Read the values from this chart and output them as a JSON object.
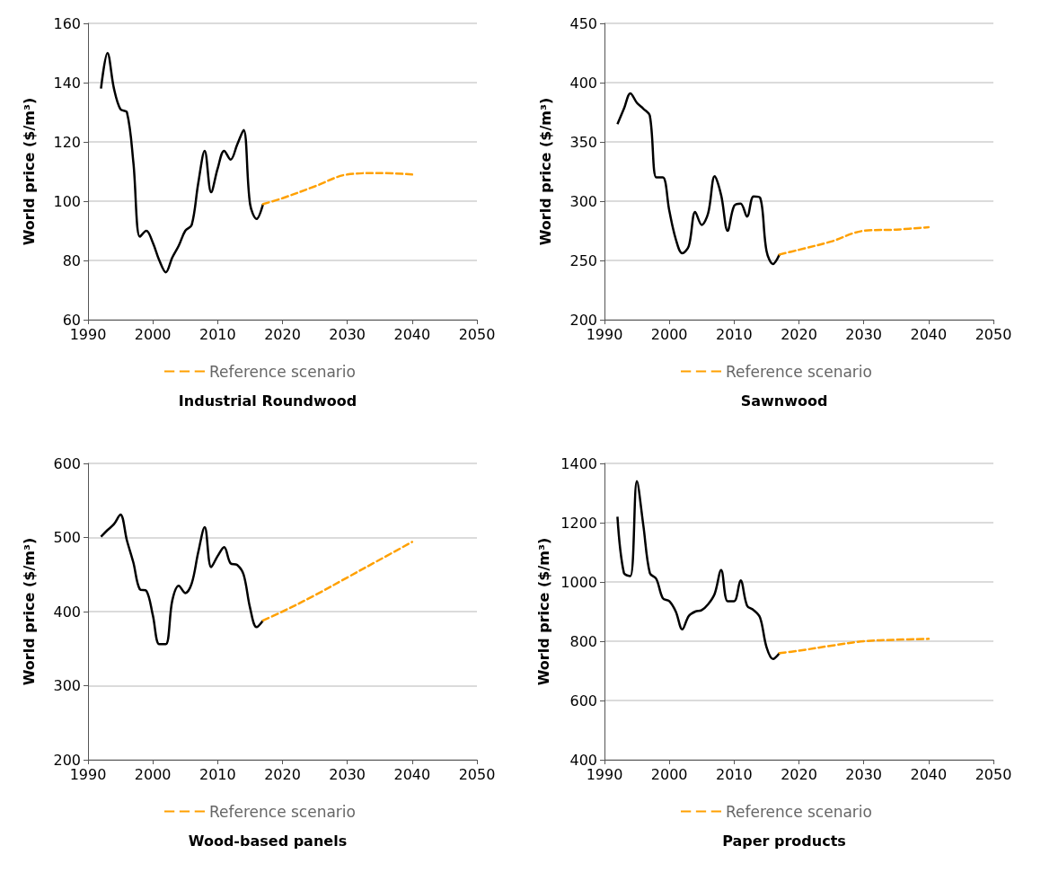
{
  "chart_data": [
    {
      "type": "line",
      "title": "Industrial Roundwood",
      "ylabel": "World price ($/m³)",
      "xlim": [
        1990,
        2050
      ],
      "xticks": [
        1990,
        2000,
        2010,
        2020,
        2030,
        2040,
        2050
      ],
      "ylim": [
        60,
        160
      ],
      "yticks": [
        60,
        80,
        100,
        120,
        140,
        160
      ],
      "grid": "y",
      "legend": "bottom",
      "marker": "none",
      "series": [
        {
          "color": "#000000",
          "line_style": "solid",
          "x": [
            1992,
            1993,
            1994,
            1995,
            1996,
            1997,
            1998,
            1999,
            2000,
            2001,
            2002,
            2003,
            2004,
            2005,
            2006,
            2007,
            2008,
            2009,
            2010,
            2011,
            2012,
            2013,
            2014,
            2015,
            2016,
            2017
          ],
          "values": [
            138,
            150,
            138,
            131,
            130,
            113,
            88,
            90,
            86,
            80,
            76,
            81,
            85,
            90,
            92,
            106,
            117,
            103,
            111,
            117,
            114,
            119,
            124,
            99,
            94,
            99
          ]
        },
        {
          "name": "Reference scenario",
          "color": "#ffa000",
          "line_style": "dashed",
          "x": [
            2017,
            2020,
            2025,
            2030,
            2035,
            2040
          ],
          "values": [
            99,
            101,
            105,
            109,
            109.5,
            109
          ]
        }
      ]
    },
    {
      "type": "line",
      "title": "Sawnwood",
      "ylabel": "World price ($/m³)",
      "xlim": [
        1990,
        2050
      ],
      "xticks": [
        1990,
        2000,
        2010,
        2020,
        2030,
        2040,
        2050
      ],
      "ylim": [
        200,
        450
      ],
      "yticks": [
        200,
        250,
        300,
        350,
        400,
        450
      ],
      "grid": "y",
      "legend": "bottom",
      "marker": "none",
      "series": [
        {
          "color": "#000000",
          "line_style": "solid",
          "x": [
            1992,
            1993,
            1994,
            1995,
            1996,
            1997,
            1998,
            1999,
            2000,
            2001,
            2002,
            2003,
            2004,
            2005,
            2006,
            2007,
            2008,
            2009,
            2010,
            2011,
            2012,
            2013,
            2014,
            2015,
            2016,
            2017
          ],
          "values": [
            365,
            378,
            391,
            383,
            378,
            372,
            320,
            320,
            292,
            268,
            256,
            262,
            291,
            280,
            290,
            321,
            305,
            275,
            296,
            298,
            287,
            304,
            303,
            258,
            247,
            255
          ]
        },
        {
          "name": "Reference scenario",
          "color": "#ffa000",
          "line_style": "dashed",
          "x": [
            2017,
            2020,
            2025,
            2030,
            2035,
            2040
          ],
          "values": [
            255,
            259,
            266,
            275,
            276,
            278
          ]
        }
      ]
    },
    {
      "type": "line",
      "title": "Wood-based panels",
      "ylabel": "World price ($/m³)",
      "xlim": [
        1990,
        2050
      ],
      "xticks": [
        1990,
        2000,
        2010,
        2020,
        2030,
        2040,
        2050
      ],
      "ylim": [
        200,
        600
      ],
      "yticks": [
        200,
        300,
        400,
        500,
        600
      ],
      "grid": "y",
      "legend": "bottom",
      "marker": "none",
      "series": [
        {
          "color": "#000000",
          "line_style": "solid",
          "x": [
            1992,
            1993,
            1994,
            1995,
            1996,
            1997,
            1998,
            1999,
            2000,
            2001,
            2002,
            2003,
            2004,
            2005,
            2006,
            2007,
            2008,
            2009,
            2010,
            2011,
            2012,
            2013,
            2014,
            2015,
            2016,
            2017
          ],
          "values": [
            501,
            510,
            518,
            531,
            496,
            466,
            430,
            428,
            395,
            356,
            356,
            415,
            435,
            425,
            438,
            480,
            514,
            460,
            475,
            487,
            465,
            463,
            450,
            405,
            379,
            388
          ]
        },
        {
          "name": "Reference scenario",
          "color": "#ffa000",
          "line_style": "dashed",
          "x": [
            2017,
            2020,
            2025,
            2030,
            2035,
            2040
          ],
          "values": [
            388,
            400,
            422,
            446,
            470,
            494
          ]
        }
      ]
    },
    {
      "type": "line",
      "title": "Paper products",
      "ylabel": "World price ($/m³)",
      "xlim": [
        1990,
        2050
      ],
      "xticks": [
        1990,
        2000,
        2010,
        2020,
        2030,
        2040,
        2050
      ],
      "ylim": [
        400,
        1400
      ],
      "yticks": [
        400,
        600,
        800,
        1000,
        1200,
        1400
      ],
      "grid": "y",
      "legend": "bottom",
      "marker": "none",
      "series": [
        {
          "color": "#000000",
          "line_style": "solid",
          "x": [
            1992,
            1993,
            1994,
            1995,
            1996,
            1997,
            1998,
            1999,
            2000,
            2001,
            2002,
            2003,
            2004,
            2005,
            2006,
            2007,
            2008,
            2009,
            2010,
            2011,
            2012,
            2013,
            2014,
            2015,
            2016,
            2017
          ],
          "values": [
            1220,
            1030,
            1020,
            1340,
            1190,
            1030,
            1010,
            945,
            935,
            900,
            840,
            885,
            900,
            905,
            925,
            960,
            1040,
            935,
            935,
            1005,
            920,
            905,
            880,
            780,
            740,
            760
          ]
        },
        {
          "name": "Reference scenario",
          "color": "#ffa000",
          "line_style": "dashed",
          "x": [
            2017,
            2020,
            2025,
            2030,
            2035,
            2040
          ],
          "values": [
            760,
            768,
            785,
            800,
            805,
            808
          ]
        }
      ]
    }
  ]
}
